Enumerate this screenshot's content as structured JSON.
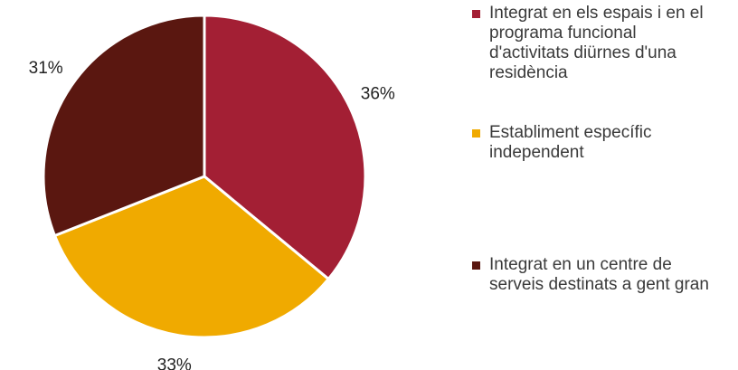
{
  "chart_data": {
    "type": "pie",
    "title": "",
    "slices": [
      {
        "label": "Integrat en els espais i en el programa funcional d'activitats diürnes d'una residència",
        "value": 36,
        "value_label": "36%",
        "color": "#a31f34"
      },
      {
        "label": "Establiment específic independent",
        "value": 33,
        "value_label": "33%",
        "color": "#f0aa00"
      },
      {
        "label": "Integrat en un centre de serveis destinats a gent gran",
        "value": 31,
        "value_label": "31%",
        "color": "#5a1710"
      }
    ],
    "legend_position": "right",
    "start_angle": "top, clockwise"
  }
}
